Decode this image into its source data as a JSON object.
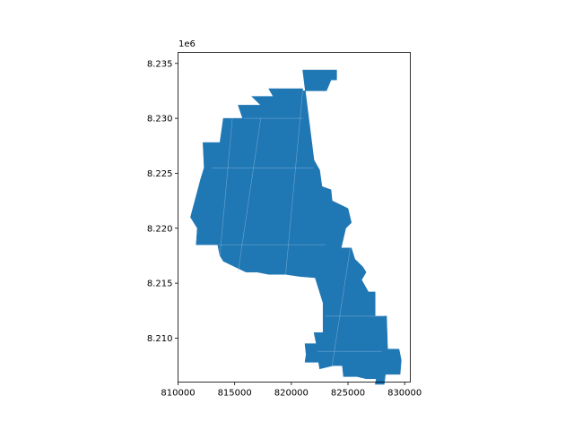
{
  "chart_data": {
    "type": "area",
    "title": "",
    "xlabel": "",
    "ylabel": "",
    "y_offset_label": "1e6",
    "xlim": [
      810000,
      830500
    ],
    "ylim": [
      8.206,
      8.236
    ],
    "x_ticks": [
      810000,
      815000,
      820000,
      825000,
      830000
    ],
    "x_tick_labels": [
      "810000",
      "815000",
      "820000",
      "825000",
      "830000"
    ],
    "y_ticks": [
      8.21,
      8.215,
      8.22,
      8.225,
      8.23,
      8.235
    ],
    "y_tick_labels": [
      "8.210",
      "8.215",
      "8.220",
      "8.225",
      "8.230",
      "8.235"
    ],
    "grid": false,
    "fill_color": "#1f77b4",
    "seam_color": "#9ec3e0",
    "series": [
      {
        "x": [
          821000,
          824000,
          824000,
          823500,
          823100,
          821000,
          821000,
          818000,
          818400,
          816500,
          817300,
          815300,
          815700,
          814000,
          813700,
          812200,
          812300,
          812000,
          811100,
          811700,
          811600,
          812700,
          813500,
          813700,
          814000,
          816000,
          817000,
          818000,
          819500,
          820800,
          822100,
          822800,
          822800,
          822000,
          822200,
          821200,
          821300,
          821200,
          822400,
          822500,
          823700,
          824500,
          824600,
          825800,
          826600,
          827500,
          827400,
          828200,
          828300,
          829600,
          829700,
          829500,
          828500,
          828400,
          827400,
          827400,
          826800,
          826200,
          826600,
          826300,
          825600,
          825300,
          824400,
          824800,
          825300,
          825000,
          823600,
          823500,
          822700,
          822500,
          822000
        ],
        "y": [
          8.2344,
          8.2344,
          8.2335,
          8.2335,
          8.2325,
          8.2325,
          8.2327,
          8.2327,
          8.232,
          8.232,
          8.2312,
          8.2312,
          8.23,
          8.23,
          8.2278,
          8.2278,
          8.2255,
          8.2245,
          8.221,
          8.22,
          8.2185,
          8.2185,
          8.2185,
          8.2175,
          8.217,
          8.216,
          8.216,
          8.2158,
          8.2158,
          8.2156,
          8.2155,
          8.2132,
          8.2105,
          8.2105,
          8.2095,
          8.2095,
          8.2085,
          8.2078,
          8.2078,
          8.2072,
          8.2075,
          8.2075,
          8.2065,
          8.2065,
          8.2063,
          8.2063,
          8.2058,
          8.2058,
          8.2067,
          8.2067,
          8.208,
          8.209,
          8.209,
          8.212,
          8.212,
          8.2142,
          8.2142,
          8.2153,
          8.216,
          8.2165,
          8.2172,
          8.2182,
          8.2182,
          8.22,
          8.2205,
          8.2218,
          8.2225,
          8.2235,
          8.2238,
          8.2253,
          8.2262
        ]
      }
    ]
  }
}
